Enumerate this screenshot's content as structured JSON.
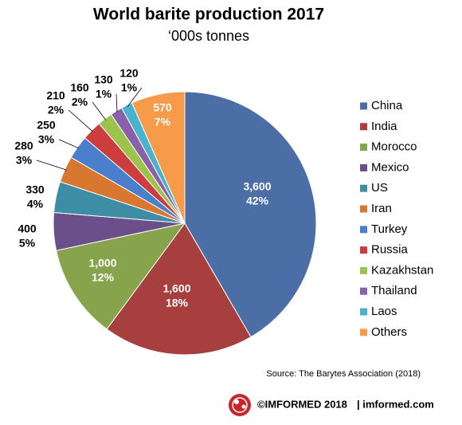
{
  "chart_data": {
    "type": "pie",
    "title": "World barite production 2017",
    "subtitle": "‘000s tonnes",
    "categories": [
      "China",
      "India",
      "Morocco",
      "Mexico",
      "US",
      "Iran",
      "Turkey",
      "Russia",
      "Kazakhstan",
      "Thailand",
      "Laos",
      "Others"
    ],
    "values": [
      3600,
      1600,
      1000,
      400,
      330,
      280,
      250,
      210,
      160,
      130,
      120,
      570
    ],
    "value_labels": [
      "3,600",
      "1,600",
      "1,000",
      "400",
      "330",
      "280",
      "250",
      "210",
      "160",
      "130",
      "120",
      "570"
    ],
    "percent_labels": [
      "42%",
      "18%",
      "12%",
      "5%",
      "4%",
      "3%",
      "3%",
      "2%",
      "2%",
      "1%",
      "1%",
      "7%"
    ],
    "colors": [
      "#4a6ea5",
      "#a63f3d",
      "#87a44c",
      "#6a4f8b",
      "#3d8da5",
      "#d8772f",
      "#4a7fcb",
      "#cc3d3e",
      "#9cc34e",
      "#8a60a8",
      "#47b3cc",
      "#f59b4a"
    ],
    "legend": "right",
    "source": "Source: The Barytes Association (2018)"
  },
  "footer": {
    "brand": "©IMFORMED 2018",
    "site": "| imformed.com"
  }
}
